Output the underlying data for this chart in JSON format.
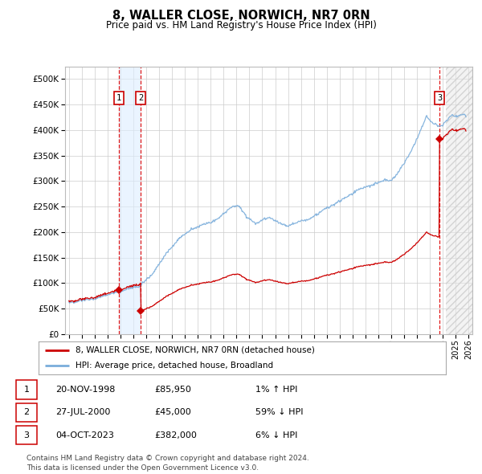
{
  "title": "8, WALLER CLOSE, NORWICH, NR7 0RN",
  "subtitle": "Price paid vs. HM Land Registry's House Price Index (HPI)",
  "ytick_values": [
    0,
    50000,
    100000,
    150000,
    200000,
    250000,
    300000,
    350000,
    400000,
    450000,
    500000
  ],
  "ylim": [
    0,
    525000
  ],
  "xlim_start": 1994.7,
  "xlim_end": 2026.3,
  "transactions": [
    {
      "num": 1,
      "date": "20-NOV-1998",
      "price": 85950,
      "year": 1998.89,
      "hpi_rel": "1% ↑ HPI"
    },
    {
      "num": 2,
      "date": "27-JUL-2000",
      "price": 45000,
      "year": 2000.57,
      "hpi_rel": "59% ↓ HPI"
    },
    {
      "num": 3,
      "date": "04-OCT-2023",
      "price": 382000,
      "year": 2023.75,
      "hpi_rel": "6% ↓ HPI"
    }
  ],
  "legend_red": "8, WALLER CLOSE, NORWICH, NR7 0RN (detached house)",
  "legend_blue": "HPI: Average price, detached house, Broadland",
  "footer1": "Contains HM Land Registry data © Crown copyright and database right 2024.",
  "footer2": "This data is licensed under the Open Government Licence v3.0.",
  "red_line_color": "#cc0000",
  "blue_line_color": "#7aaddb",
  "grid_color": "#cccccc",
  "vline_color": "#dd0000",
  "box_color": "#cc0000",
  "shade_color": "#ddeeff",
  "hatch_color": "#bbbbbb"
}
